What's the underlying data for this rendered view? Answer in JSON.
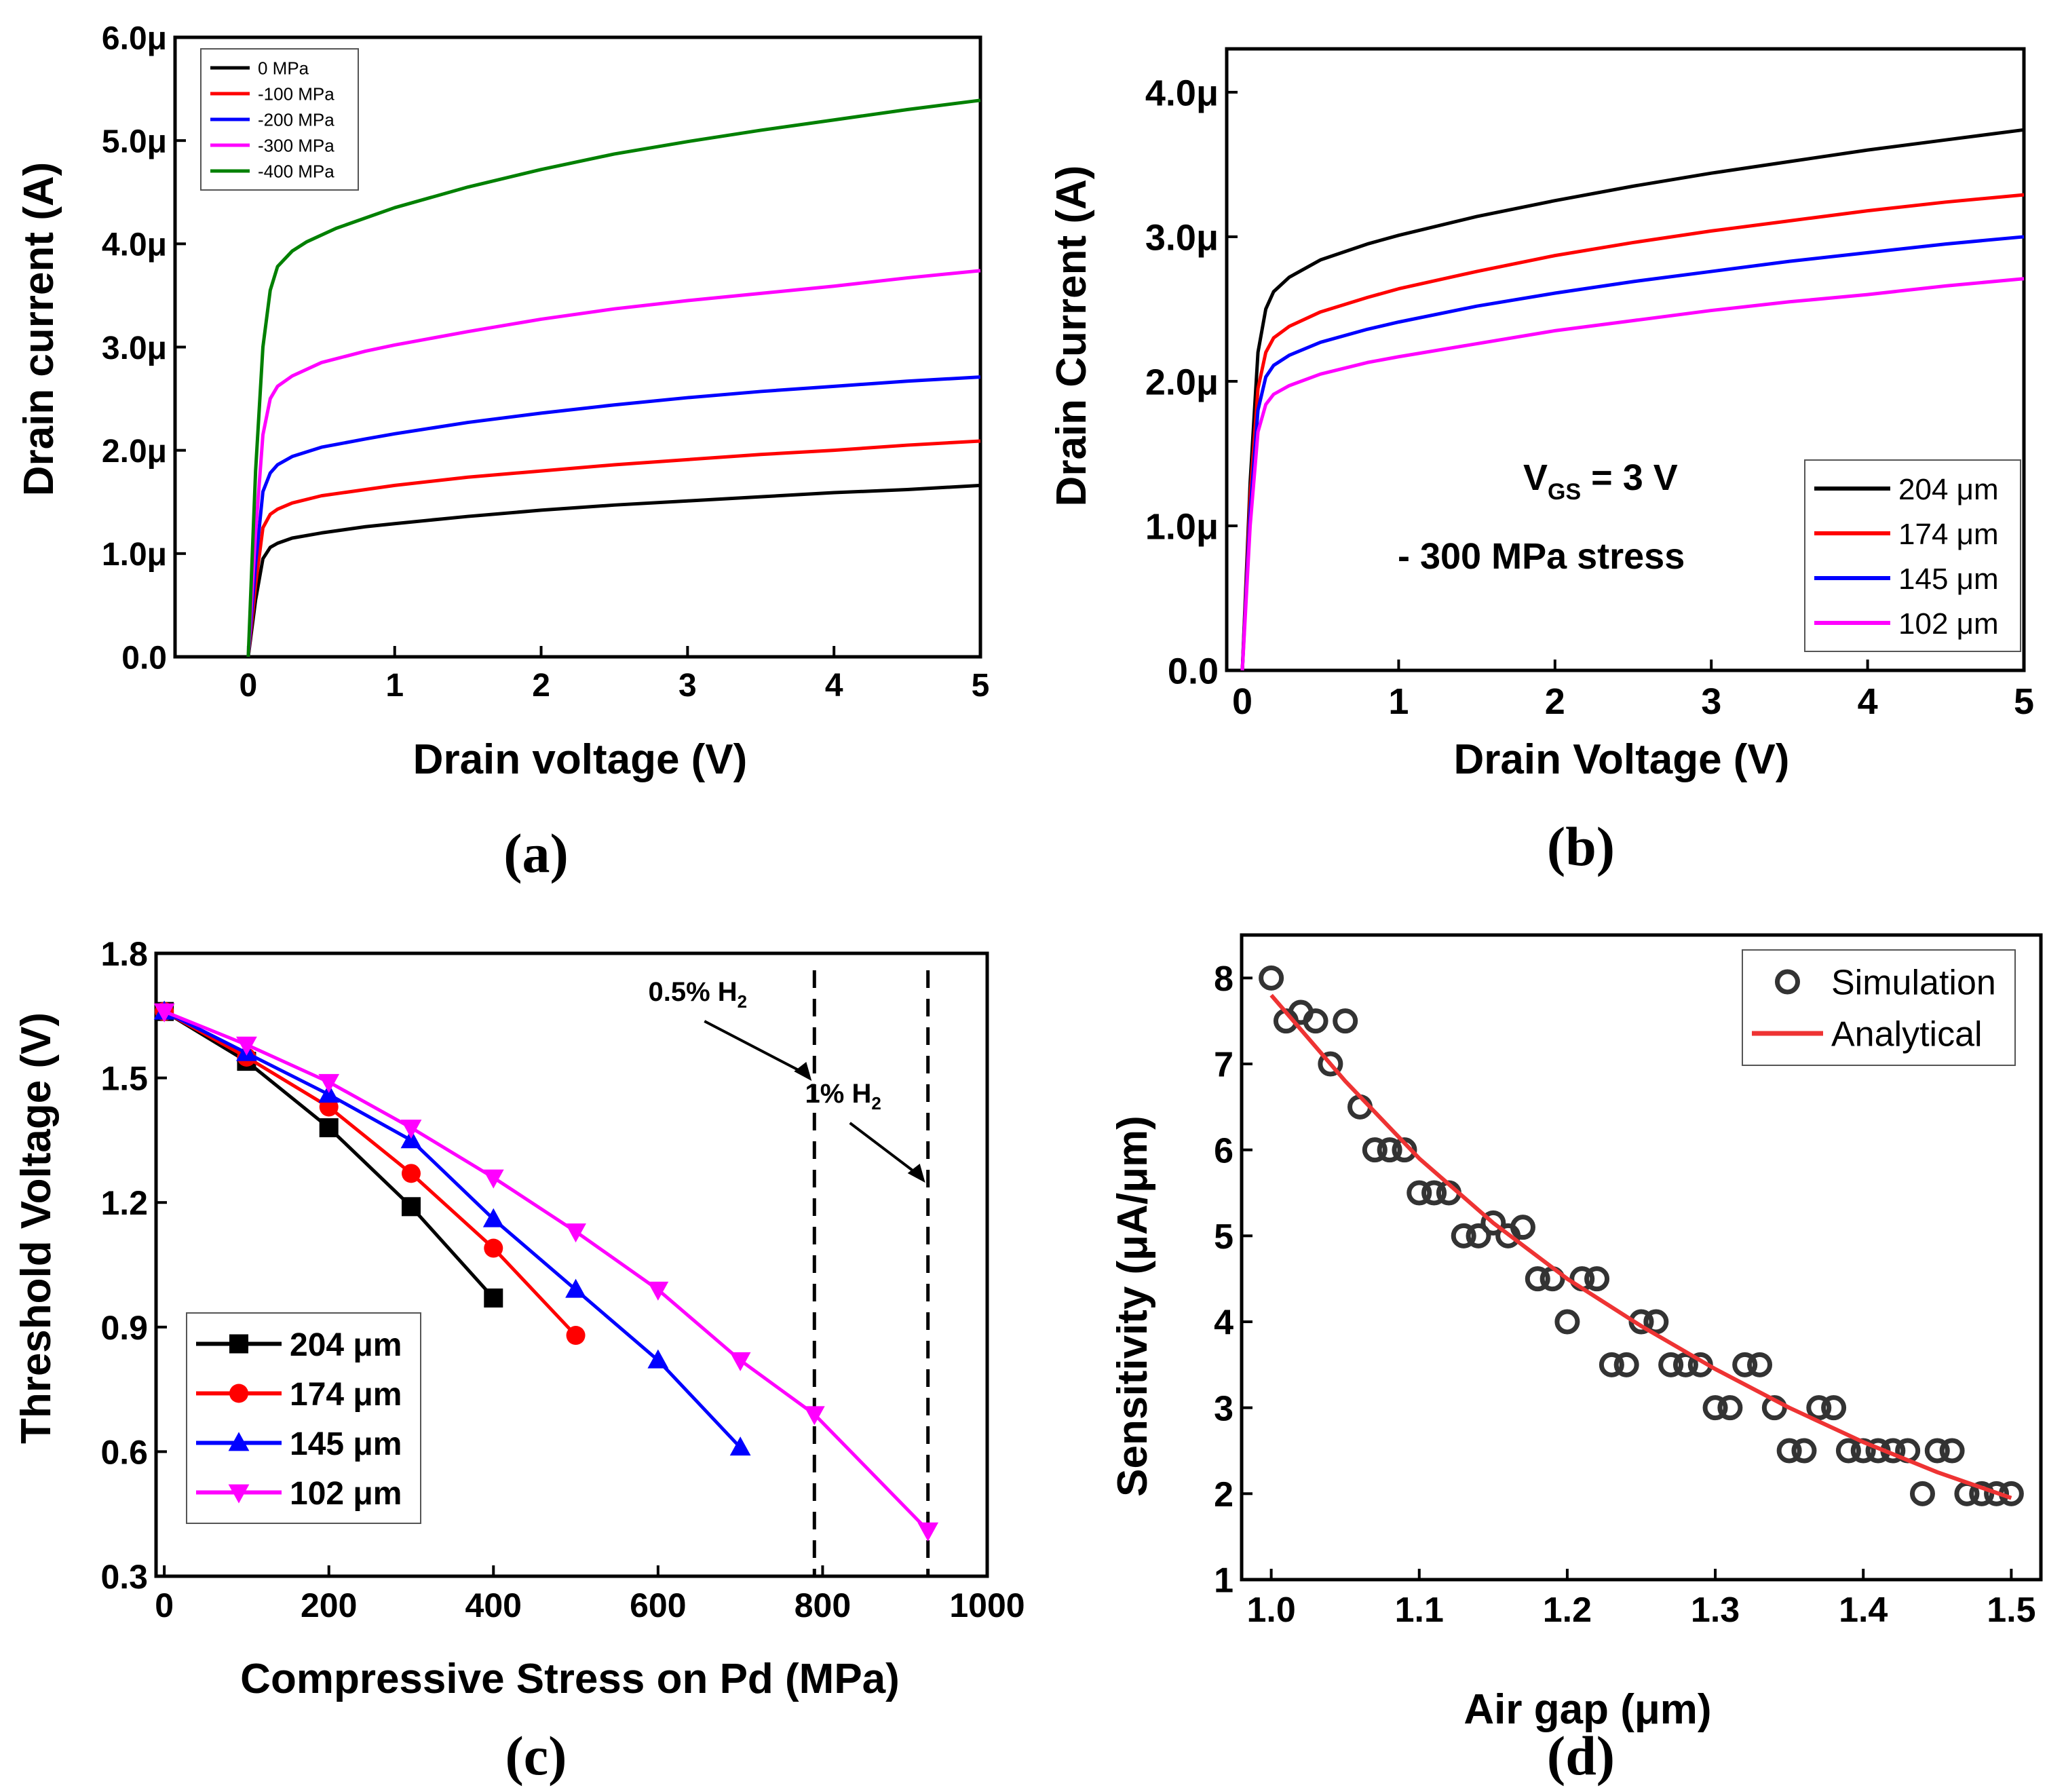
{
  "chart_data": [
    {
      "id": "a",
      "panel_label": "(a)",
      "type": "line",
      "title": "",
      "xlabel": "Drain voltage (V)",
      "ylabel": "Drain current (A)",
      "xlim": [
        -0.5,
        5
      ],
      "ylim": [
        0,
        6e-06
      ],
      "grid": false,
      "legend_position": "top-left",
      "xticks": [
        0,
        1,
        2,
        3,
        4,
        5
      ],
      "xtick_labels": [
        "0",
        "1",
        "2",
        "3",
        "4",
        "5"
      ],
      "yticks": [
        0,
        1e-06,
        2e-06,
        3e-06,
        4e-06,
        5e-06,
        6e-06
      ],
      "ytick_labels": [
        "0.0",
        "1.0μ",
        "2.0μ",
        "3.0μ",
        "4.0μ",
        "5.0μ",
        "6.0μ"
      ],
      "series": [
        {
          "name": "0 MPa",
          "color": "#000000",
          "x": [
            0,
            0.05,
            0.1,
            0.15,
            0.2,
            0.3,
            0.5,
            0.8,
            1,
            1.5,
            2,
            2.5,
            3,
            3.5,
            4,
            4.5,
            5
          ],
          "y": [
            0,
            5.5e-07,
            9.5e-07,
            1.06e-06,
            1.1e-06,
            1.15e-06,
            1.2e-06,
            1.26e-06,
            1.29e-06,
            1.36e-06,
            1.42e-06,
            1.47e-06,
            1.51e-06,
            1.55e-06,
            1.59e-06,
            1.62e-06,
            1.66e-06
          ]
        },
        {
          "name": "-100 MPa",
          "color": "#ff0000",
          "x": [
            0,
            0.05,
            0.1,
            0.15,
            0.2,
            0.3,
            0.5,
            0.8,
            1,
            1.5,
            2,
            2.5,
            3,
            3.5,
            4,
            4.5,
            5
          ],
          "y": [
            0,
            7e-07,
            1.25e-06,
            1.38e-06,
            1.43e-06,
            1.49e-06,
            1.56e-06,
            1.62e-06,
            1.66e-06,
            1.74e-06,
            1.8e-06,
            1.86e-06,
            1.91e-06,
            1.96e-06,
            2e-06,
            2.05e-06,
            2.09e-06
          ]
        },
        {
          "name": "-200 MPa",
          "color": "#0000ff",
          "x": [
            0,
            0.05,
            0.1,
            0.15,
            0.2,
            0.3,
            0.5,
            0.8,
            1,
            1.5,
            2,
            2.5,
            3,
            3.5,
            4,
            4.5,
            5
          ],
          "y": [
            0,
            9e-07,
            1.6e-06,
            1.78e-06,
            1.86e-06,
            1.94e-06,
            2.03e-06,
            2.11e-06,
            2.16e-06,
            2.27e-06,
            2.36e-06,
            2.44e-06,
            2.51e-06,
            2.57e-06,
            2.62e-06,
            2.67e-06,
            2.71e-06
          ]
        },
        {
          "name": "-300 MPa",
          "color": "#ff00ff",
          "x": [
            0,
            0.05,
            0.1,
            0.15,
            0.2,
            0.3,
            0.5,
            0.8,
            1,
            1.5,
            2,
            2.5,
            3,
            3.5,
            4,
            4.5,
            5
          ],
          "y": [
            0,
            1.2e-06,
            2.15e-06,
            2.5e-06,
            2.62e-06,
            2.72e-06,
            2.85e-06,
            2.96e-06,
            3.02e-06,
            3.15e-06,
            3.27e-06,
            3.37e-06,
            3.45e-06,
            3.52e-06,
            3.59e-06,
            3.67e-06,
            3.74e-06
          ]
        },
        {
          "name": "-400 MPa",
          "color": "#008000",
          "x": [
            0,
            0.05,
            0.1,
            0.15,
            0.2,
            0.3,
            0.4,
            0.6,
            0.8,
            1,
            1.5,
            2,
            2.5,
            3,
            3.5,
            4,
            4.5,
            5
          ],
          "y": [
            0,
            1.8e-06,
            3e-06,
            3.55e-06,
            3.78e-06,
            3.93e-06,
            4.02e-06,
            4.15e-06,
            4.25e-06,
            4.35e-06,
            4.55e-06,
            4.72e-06,
            4.87e-06,
            4.99e-06,
            5.1e-06,
            5.2e-06,
            5.3e-06,
            5.39e-06
          ]
        }
      ]
    },
    {
      "id": "b",
      "panel_label": "(b)",
      "type": "line",
      "title": "",
      "xlabel": "Drain Voltage (V)",
      "ylabel": "Drain Current (A)",
      "xlim": [
        -0.1,
        5
      ],
      "ylim": [
        0,
        4.3e-06
      ],
      "grid": false,
      "legend_position": "bottom-right",
      "annotations": [
        "V_GS = 3 V",
        "- 300 MPa stress"
      ],
      "annotation_parts": {
        "v": "V",
        "sub": "GS",
        "rest": " = 3 V",
        "stress": "- 300 MPa stress"
      },
      "xticks": [
        0,
        1,
        2,
        3,
        4,
        5
      ],
      "xtick_labels": [
        "0",
        "1",
        "2",
        "3",
        "4",
        "5"
      ],
      "yticks": [
        0,
        1e-06,
        2e-06,
        3e-06,
        4e-06
      ],
      "ytick_labels": [
        "0.0",
        "1.0μ",
        "2.0μ",
        "3.0μ",
        "4.0μ"
      ],
      "series": [
        {
          "name": "204 μm",
          "color": "#000000",
          "x": [
            0,
            0.05,
            0.1,
            0.15,
            0.2,
            0.3,
            0.5,
            0.8,
            1,
            1.5,
            2,
            2.5,
            3,
            3.5,
            4,
            4.5,
            5
          ],
          "y": [
            0,
            1.3e-06,
            2.2e-06,
            2.5e-06,
            2.62e-06,
            2.72e-06,
            2.84e-06,
            2.95e-06,
            3.01e-06,
            3.14e-06,
            3.25e-06,
            3.35e-06,
            3.44e-06,
            3.52e-06,
            3.6e-06,
            3.67e-06,
            3.74e-06
          ]
        },
        {
          "name": "174 μm",
          "color": "#ff0000",
          "x": [
            0,
            0.05,
            0.1,
            0.15,
            0.2,
            0.3,
            0.5,
            0.8,
            1,
            1.5,
            2,
            2.5,
            3,
            3.5,
            4,
            4.5,
            5
          ],
          "y": [
            0,
            1.2e-06,
            1.95e-06,
            2.2e-06,
            2.3e-06,
            2.38e-06,
            2.48e-06,
            2.58e-06,
            2.64e-06,
            2.76e-06,
            2.87e-06,
            2.96e-06,
            3.04e-06,
            3.11e-06,
            3.18e-06,
            3.24e-06,
            3.29e-06
          ]
        },
        {
          "name": "145 μm",
          "color": "#0000ff",
          "x": [
            0,
            0.05,
            0.1,
            0.15,
            0.2,
            0.3,
            0.5,
            0.8,
            1,
            1.5,
            2,
            2.5,
            3,
            3.5,
            4,
            4.5,
            5
          ],
          "y": [
            0,
            1.1e-06,
            1.8e-06,
            2.03e-06,
            2.11e-06,
            2.18e-06,
            2.27e-06,
            2.36e-06,
            2.41e-06,
            2.52e-06,
            2.61e-06,
            2.69e-06,
            2.76e-06,
            2.83e-06,
            2.89e-06,
            2.95e-06,
            3e-06
          ]
        },
        {
          "name": "102 μm",
          "color": "#ff00ff",
          "x": [
            0,
            0.05,
            0.1,
            0.15,
            0.2,
            0.3,
            0.5,
            0.8,
            1,
            1.5,
            2,
            2.5,
            3,
            3.5,
            4,
            4.5,
            5
          ],
          "y": [
            0,
            1e-06,
            1.65e-06,
            1.84e-06,
            1.91e-06,
            1.97e-06,
            2.05e-06,
            2.13e-06,
            2.17e-06,
            2.26e-06,
            2.35e-06,
            2.42e-06,
            2.49e-06,
            2.55e-06,
            2.6e-06,
            2.66e-06,
            2.71e-06
          ]
        }
      ]
    },
    {
      "id": "c",
      "panel_label": "(c)",
      "type": "line",
      "title": "",
      "xlabel": "Compressive Stress on Pd (MPa)",
      "ylabel": "Threshold Voltage (V)",
      "xlim": [
        -10,
        1000
      ],
      "ylim": [
        0.3,
        1.8
      ],
      "grid": false,
      "legend_position": "bottom-left",
      "xticks": [
        0,
        200,
        400,
        600,
        800,
        1000
      ],
      "xtick_labels": [
        "0",
        "200",
        "400",
        "600",
        "800",
        "1000"
      ],
      "yticks": [
        0.3,
        0.6,
        0.9,
        1.2,
        1.5,
        1.8
      ],
      "ytick_labels": [
        "0.3",
        "0.6",
        "0.9",
        "1.2",
        "1.5",
        "1.8"
      ],
      "vlines": [
        {
          "x": 790,
          "label": "0.5% H",
          "sub": "2"
        },
        {
          "x": 928,
          "label": "1% H",
          "sub": "2"
        }
      ],
      "series": [
        {
          "name": "204 μm",
          "color": "#000000",
          "marker": "square",
          "x": [
            0,
            100,
            200,
            300,
            400
          ],
          "y": [
            1.66,
            1.54,
            1.38,
            1.19,
            0.97
          ]
        },
        {
          "name": "174 μm",
          "color": "#ff0000",
          "marker": "circle",
          "x": [
            0,
            100,
            200,
            300,
            400,
            500
          ],
          "y": [
            1.66,
            1.55,
            1.43,
            1.27,
            1.09,
            0.88
          ]
        },
        {
          "name": "145 μm",
          "color": "#0000ff",
          "marker": "triangle-up",
          "x": [
            0,
            100,
            200,
            300,
            400,
            500,
            600,
            700
          ],
          "y": [
            1.66,
            1.56,
            1.46,
            1.35,
            1.16,
            0.99,
            0.82,
            0.61
          ]
        },
        {
          "name": "102 μm",
          "color": "#ff00ff",
          "marker": "triangle-down",
          "x": [
            0,
            100,
            200,
            300,
            400,
            500,
            600,
            700,
            790,
            928
          ],
          "y": [
            1.66,
            1.58,
            1.49,
            1.38,
            1.26,
            1.13,
            0.99,
            0.82,
            0.69,
            0.41
          ]
        }
      ]
    },
    {
      "id": "d",
      "panel_label": "(d)",
      "type": "scatter",
      "title": "",
      "xlabel": "Air gap (μm)",
      "ylabel": "Sensitivity (μA/μm)",
      "xlim": [
        0.98,
        1.52
      ],
      "ylim": [
        1,
        8.5
      ],
      "grid": false,
      "legend_position": "top-right",
      "xticks": [
        1.0,
        1.1,
        1.2,
        1.3,
        1.4,
        1.5
      ],
      "xtick_labels": [
        "1.0",
        "1.1",
        "1.2",
        "1.3",
        "1.4",
        "1.5"
      ],
      "yticks": [
        1,
        2,
        3,
        4,
        5,
        6,
        7,
        8
      ],
      "ytick_labels": [
        "1",
        "2",
        "3",
        "4",
        "5",
        "6",
        "7",
        "8"
      ],
      "series": [
        {
          "name": "Simulation",
          "color": "#333333",
          "marker": "open-circle",
          "x": [
            1.0,
            1.01,
            1.02,
            1.03,
            1.04,
            1.05,
            1.06,
            1.07,
            1.08,
            1.09,
            1.1,
            1.11,
            1.12,
            1.13,
            1.14,
            1.15,
            1.16,
            1.17,
            1.18,
            1.19,
            1.2,
            1.21,
            1.22,
            1.23,
            1.24,
            1.25,
            1.26,
            1.27,
            1.28,
            1.29,
            1.3,
            1.31,
            1.32,
            1.33,
            1.34,
            1.35,
            1.36,
            1.37,
            1.38,
            1.39,
            1.4,
            1.41,
            1.42,
            1.43,
            1.44,
            1.45,
            1.46,
            1.47,
            1.48,
            1.49,
            1.5
          ],
          "y": [
            8.0,
            7.5,
            7.6,
            7.5,
            7.0,
            7.5,
            6.5,
            6.0,
            6.0,
            6.0,
            5.5,
            5.5,
            5.5,
            5.0,
            5.0,
            5.15,
            5.0,
            5.1,
            4.5,
            4.5,
            4.0,
            4.5,
            4.5,
            3.5,
            3.5,
            4.0,
            4.0,
            3.5,
            3.5,
            3.5,
            3.0,
            3.0,
            3.5,
            3.5,
            3.0,
            2.5,
            2.5,
            3.0,
            3.0,
            2.5,
            2.5,
            2.5,
            2.5,
            2.5,
            2.0,
            2.5,
            2.5,
            2.0,
            2.0,
            2.0,
            2.0
          ]
        },
        {
          "name": "Analytical",
          "color": "#ee3333",
          "marker": "none",
          "x": [
            1.0,
            1.05,
            1.1,
            1.15,
            1.2,
            1.25,
            1.3,
            1.35,
            1.4,
            1.45,
            1.5
          ],
          "y": [
            7.8,
            6.8,
            5.9,
            5.15,
            4.5,
            3.95,
            3.45,
            3.0,
            2.6,
            2.25,
            1.95
          ]
        }
      ]
    }
  ]
}
